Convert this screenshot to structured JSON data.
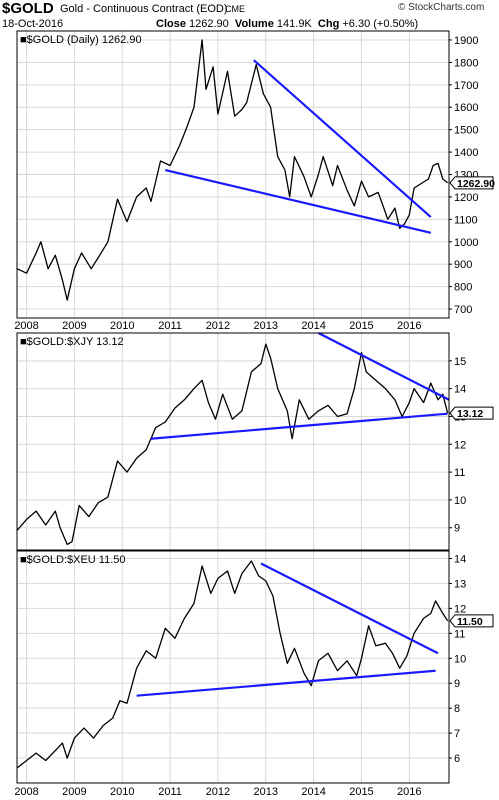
{
  "header": {
    "symbol": "$GOLD",
    "title": "Gold - Continuous Contract (EOD)",
    "exchange": "CME",
    "date": "18-Oct-2016",
    "close_label": "Close",
    "close_value": "1262.90",
    "volume_label": "Volume",
    "volume_value": "141.9K",
    "chg_label": "Chg",
    "chg_value": "+6.30 (+0.50%)",
    "brand": "© StockCharts.com"
  },
  "colors": {
    "price_line": "#000000",
    "trendline": "#1a1aff",
    "grid": "#d8d8d8",
    "frame": "#000000"
  },
  "chart_data": [
    {
      "type": "line",
      "legend": "$GOLD (Daily) 1262.90",
      "last_value_tag": "1262.90",
      "x_tick_labels": [
        "2008",
        "2009",
        "2010",
        "2011",
        "2012",
        "2013",
        "2014",
        "2015",
        "2016"
      ],
      "y_ticks": [
        700,
        800,
        900,
        1000,
        1100,
        1200,
        1300,
        1400,
        1500,
        1600,
        1700,
        1800,
        1900
      ],
      "ylim": [
        660,
        1940
      ],
      "xlim": [
        2007.8,
        2016.83
      ],
      "grid": true,
      "series": [
        {
          "values": [
            [
              2007.8,
              880
            ],
            [
              2008.0,
              860
            ],
            [
              2008.2,
              950
            ],
            [
              2008.3,
              1000
            ],
            [
              2008.45,
              880
            ],
            [
              2008.6,
              940
            ],
            [
              2008.75,
              830
            ],
            [
              2008.85,
              740
            ],
            [
              2009.0,
              880
            ],
            [
              2009.15,
              950
            ],
            [
              2009.35,
              880
            ],
            [
              2009.5,
              930
            ],
            [
              2009.7,
              1000
            ],
            [
              2009.9,
              1190
            ],
            [
              2010.1,
              1090
            ],
            [
              2010.3,
              1200
            ],
            [
              2010.5,
              1240
            ],
            [
              2010.6,
              1180
            ],
            [
              2010.8,
              1360
            ],
            [
              2011.0,
              1340
            ],
            [
              2011.2,
              1430
            ],
            [
              2011.35,
              1510
            ],
            [
              2011.5,
              1600
            ],
            [
              2011.67,
              1900
            ],
            [
              2011.75,
              1680
            ],
            [
              2011.9,
              1780
            ],
            [
              2012.0,
              1570
            ],
            [
              2012.2,
              1760
            ],
            [
              2012.35,
              1560
            ],
            [
              2012.5,
              1590
            ],
            [
              2012.6,
              1620
            ],
            [
              2012.8,
              1790
            ],
            [
              2012.95,
              1660
            ],
            [
              2013.1,
              1600
            ],
            [
              2013.25,
              1380
            ],
            [
              2013.4,
              1320
            ],
            [
              2013.5,
              1200
            ],
            [
              2013.6,
              1380
            ],
            [
              2013.8,
              1290
            ],
            [
              2013.95,
              1200
            ],
            [
              2014.1,
              1300
            ],
            [
              2014.2,
              1380
            ],
            [
              2014.4,
              1250
            ],
            [
              2014.5,
              1340
            ],
            [
              2014.7,
              1230
            ],
            [
              2014.85,
              1160
            ],
            [
              2015.0,
              1270
            ],
            [
              2015.15,
              1200
            ],
            [
              2015.35,
              1220
            ],
            [
              2015.55,
              1100
            ],
            [
              2015.7,
              1150
            ],
            [
              2015.8,
              1060
            ],
            [
              2015.9,
              1080
            ],
            [
              2016.0,
              1120
            ],
            [
              2016.1,
              1240
            ],
            [
              2016.25,
              1260
            ],
            [
              2016.4,
              1280
            ],
            [
              2016.5,
              1340
            ],
            [
              2016.6,
              1350
            ],
            [
              2016.7,
              1280
            ],
            [
              2016.8,
              1262.9
            ]
          ]
        }
      ],
      "trendlines": [
        [
          [
            2012.75,
            1810
          ],
          [
            2016.45,
            1110
          ]
        ],
        [
          [
            2010.9,
            1320
          ],
          [
            2016.45,
            1040
          ]
        ]
      ]
    },
    {
      "type": "line",
      "legend": "$GOLD:$XJY 13.12",
      "last_value_tag": "13.12",
      "y_ticks": [
        9,
        10,
        11,
        12,
        13,
        14,
        15
      ],
      "ylim": [
        8.2,
        16.0
      ],
      "xlim": [
        2007.8,
        2016.83
      ],
      "grid": true,
      "series": [
        {
          "values": [
            [
              2007.8,
              8.9
            ],
            [
              2008.0,
              9.3
            ],
            [
              2008.2,
              9.6
            ],
            [
              2008.4,
              9.1
            ],
            [
              2008.6,
              9.6
            ],
            [
              2008.7,
              9.0
            ],
            [
              2008.85,
              8.4
            ],
            [
              2008.95,
              8.5
            ],
            [
              2009.1,
              9.8
            ],
            [
              2009.3,
              9.4
            ],
            [
              2009.5,
              9.9
            ],
            [
              2009.7,
              10.1
            ],
            [
              2009.9,
              11.4
            ],
            [
              2010.1,
              11.0
            ],
            [
              2010.3,
              11.5
            ],
            [
              2010.5,
              11.8
            ],
            [
              2010.7,
              12.6
            ],
            [
              2010.9,
              12.8
            ],
            [
              2011.1,
              13.3
            ],
            [
              2011.3,
              13.6
            ],
            [
              2011.5,
              14.0
            ],
            [
              2011.67,
              14.3
            ],
            [
              2011.8,
              13.5
            ],
            [
              2011.95,
              12.9
            ],
            [
              2012.1,
              13.8
            ],
            [
              2012.3,
              12.9
            ],
            [
              2012.5,
              13.2
            ],
            [
              2012.7,
              14.6
            ],
            [
              2012.9,
              14.9
            ],
            [
              2013.0,
              15.6
            ],
            [
              2013.1,
              15.1
            ],
            [
              2013.25,
              14.0
            ],
            [
              2013.45,
              13.2
            ],
            [
              2013.55,
              12.2
            ],
            [
              2013.7,
              13.6
            ],
            [
              2013.9,
              12.9
            ],
            [
              2014.1,
              13.2
            ],
            [
              2014.3,
              13.4
            ],
            [
              2014.5,
              13.0
            ],
            [
              2014.7,
              13.1
            ],
            [
              2014.85,
              14.0
            ],
            [
              2015.0,
              15.3
            ],
            [
              2015.1,
              14.6
            ],
            [
              2015.3,
              14.3
            ],
            [
              2015.5,
              14.0
            ],
            [
              2015.7,
              13.6
            ],
            [
              2015.85,
              13.0
            ],
            [
              2016.0,
              13.5
            ],
            [
              2016.1,
              14.0
            ],
            [
              2016.3,
              13.5
            ],
            [
              2016.45,
              14.2
            ],
            [
              2016.6,
              13.6
            ],
            [
              2016.7,
              13.8
            ],
            [
              2016.8,
              13.12
            ]
          ]
        }
      ],
      "trendlines": [
        [
          [
            2014.1,
            16.0
          ],
          [
            2016.83,
            13.6
          ]
        ],
        [
          [
            2010.6,
            12.2
          ],
          [
            2016.8,
            13.1
          ]
        ]
      ]
    },
    {
      "type": "line",
      "legend": "$GOLD:$XEU 11.50",
      "last_value_tag": "11.50",
      "y_ticks": [
        6,
        7,
        8,
        9,
        10,
        11,
        12,
        13,
        14
      ],
      "ylim": [
        5.0,
        14.3
      ],
      "xlim": [
        2007.8,
        2016.83
      ],
      "grid": true,
      "series": [
        {
          "values": [
            [
              2007.8,
              5.6
            ],
            [
              2008.0,
              5.9
            ],
            [
              2008.2,
              6.2
            ],
            [
              2008.4,
              5.9
            ],
            [
              2008.6,
              6.3
            ],
            [
              2008.75,
              6.6
            ],
            [
              2008.85,
              6.0
            ],
            [
              2009.0,
              6.8
            ],
            [
              2009.2,
              7.2
            ],
            [
              2009.4,
              6.8
            ],
            [
              2009.6,
              7.3
            ],
            [
              2009.8,
              7.6
            ],
            [
              2009.95,
              8.3
            ],
            [
              2010.1,
              8.2
            ],
            [
              2010.3,
              9.6
            ],
            [
              2010.5,
              10.3
            ],
            [
              2010.7,
              10.0
            ],
            [
              2010.9,
              11.2
            ],
            [
              2011.1,
              10.8
            ],
            [
              2011.3,
              11.6
            ],
            [
              2011.5,
              12.2
            ],
            [
              2011.67,
              13.7
            ],
            [
              2011.85,
              12.6
            ],
            [
              2012.0,
              13.2
            ],
            [
              2012.2,
              13.5
            ],
            [
              2012.35,
              12.6
            ],
            [
              2012.5,
              13.4
            ],
            [
              2012.7,
              13.9
            ],
            [
              2012.85,
              13.3
            ],
            [
              2013.0,
              13.1
            ],
            [
              2013.15,
              12.5
            ],
            [
              2013.3,
              11.0
            ],
            [
              2013.45,
              9.8
            ],
            [
              2013.6,
              10.4
            ],
            [
              2013.8,
              9.4
            ],
            [
              2013.95,
              8.9
            ],
            [
              2014.1,
              9.9
            ],
            [
              2014.3,
              10.2
            ],
            [
              2014.5,
              9.5
            ],
            [
              2014.7,
              9.9
            ],
            [
              2014.9,
              9.3
            ],
            [
              2015.0,
              10.0
            ],
            [
              2015.15,
              11.3
            ],
            [
              2015.3,
              10.5
            ],
            [
              2015.5,
              10.6
            ],
            [
              2015.65,
              10.2
            ],
            [
              2015.8,
              9.6
            ],
            [
              2015.95,
              10.1
            ],
            [
              2016.1,
              11.0
            ],
            [
              2016.3,
              11.6
            ],
            [
              2016.45,
              11.8
            ],
            [
              2016.55,
              12.3
            ],
            [
              2016.7,
              11.8
            ],
            [
              2016.8,
              11.5
            ]
          ]
        }
      ],
      "trendlines": [
        [
          [
            2012.9,
            13.8
          ],
          [
            2016.6,
            10.2
          ]
        ],
        [
          [
            2010.3,
            8.5
          ],
          [
            2016.55,
            9.5
          ]
        ]
      ]
    }
  ]
}
